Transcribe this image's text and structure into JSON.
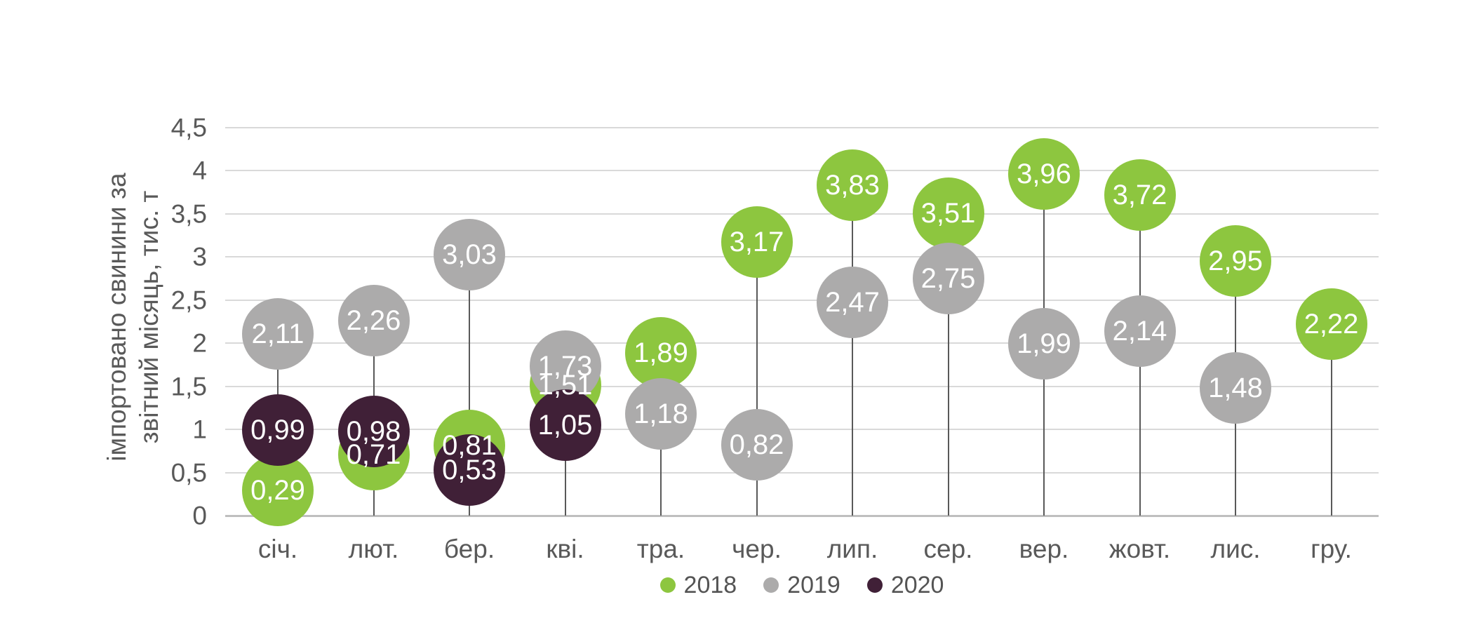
{
  "chart_data": {
    "type": "scatter",
    "subtype": "lollipop-bubble",
    "title": "",
    "ylabel_line1": "імпортовано свинини за",
    "ylabel_line2": "звітний місяць, тис. т",
    "xlabel": "",
    "ylim": [
      0,
      4.5
    ],
    "y_tick_step": 0.5,
    "y_ticks": [
      "0",
      "0,5",
      "1",
      "1,5",
      "2",
      "2,5",
      "3",
      "3,5",
      "4",
      "4,5"
    ],
    "grid": "horizontal",
    "legend_position": "bottom-center",
    "categories": [
      "січ.",
      "лют.",
      "бер.",
      "кві.",
      "тра.",
      "чер.",
      "лип.",
      "сер.",
      "вер.",
      "жовт.",
      "лис.",
      "гру."
    ],
    "series": [
      {
        "name": "2018",
        "color": "#8DC63F",
        "values": [
          0.29,
          0.71,
          0.81,
          1.51,
          1.89,
          3.17,
          3.83,
          3.51,
          3.96,
          3.72,
          2.95,
          2.22
        ],
        "labels": [
          "0,29",
          "0,71",
          "0,81",
          "1,51",
          "1,89",
          "3,17",
          "3,83",
          "3,51",
          "3,96",
          "3,72",
          "2,95",
          "2,22"
        ]
      },
      {
        "name": "2019",
        "color": "#ACABAB",
        "values": [
          2.11,
          2.26,
          3.03,
          1.73,
          1.18,
          0.82,
          2.47,
          2.75,
          1.99,
          2.14,
          1.48,
          null
        ],
        "labels": [
          "2,11",
          "2,26",
          "3,03",
          "1,73",
          "1,18",
          "0,82",
          "2,47",
          "2,75",
          "1,99",
          "2,14",
          "1,48",
          null
        ]
      },
      {
        "name": "2020",
        "color": "#402037",
        "values": [
          0.99,
          0.98,
          0.53,
          1.05,
          null,
          null,
          null,
          null,
          null,
          null,
          null,
          null
        ],
        "labels": [
          "0,99",
          "0,98",
          "0,53",
          "1,05",
          null,
          null,
          null,
          null,
          null,
          null,
          null,
          null
        ]
      }
    ]
  },
  "colors": {
    "background": "#FFFFFF",
    "gridline": "#D9D9D9",
    "axis_line": "#BFBFBF",
    "stem": "#595959",
    "axis_text": "#595959",
    "bubble_label_text": "#FFFFFF"
  }
}
